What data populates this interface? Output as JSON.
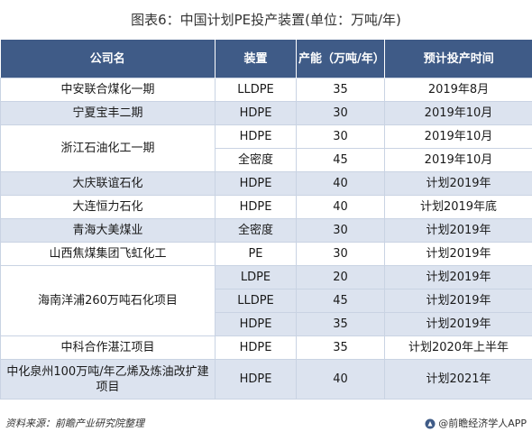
{
  "title": "图表6：中国计划PE投产装置(单位：万吨/年)",
  "table": {
    "headers": [
      "公司名",
      "装置",
      "产能（万吨/年）",
      "预计投产时间"
    ],
    "rows": [
      {
        "company": "中安联合煤化一期",
        "device": "LLDPE",
        "capacity": "35",
        "time": "2019年8月"
      },
      {
        "company": "宁夏宝丰二期",
        "device": "HDPE",
        "capacity": "30",
        "time": "2019年10月"
      },
      {
        "company": "浙江石油化工一期",
        "device": "HDPE",
        "capacity": "30",
        "time": "2019年10月"
      },
      {
        "company": "",
        "device": "全密度",
        "capacity": "45",
        "time": "2019年10月"
      },
      {
        "company": "大庆联谊石化",
        "device": "HDPE",
        "capacity": "40",
        "time": "计划2019年"
      },
      {
        "company": "大连恒力石化",
        "device": "HDPE",
        "capacity": "40",
        "time": "计划2019年底"
      },
      {
        "company": "青海大美煤业",
        "device": "全密度",
        "capacity": "30",
        "time": "计划2019年"
      },
      {
        "company": "山西焦煤集团飞虹化工",
        "device": "PE",
        "capacity": "30",
        "time": "计划2019年"
      },
      {
        "company": "海南洋浦260万吨石化项目",
        "device": "LDPE",
        "capacity": "20",
        "time": "计划2019年"
      },
      {
        "company": "",
        "device": "LLDPE",
        "capacity": "45",
        "time": "计划2019年"
      },
      {
        "company": "",
        "device": "HDPE",
        "capacity": "35",
        "time": "计划2019年"
      },
      {
        "company": "中科合作湛江项目",
        "device": "HDPE",
        "capacity": "35",
        "time": "计划2020年上半年"
      },
      {
        "company": "中化泉州100万吨/年乙烯及炼油改扩建项目",
        "device": "HDPE",
        "capacity": "40",
        "time": "计划2021年"
      }
    ]
  },
  "footer": {
    "source": "资料来源：前瞻产业研究院整理",
    "brand": "@前瞻经济学人APP"
  },
  "colors": {
    "header_bg": "#3f5b87",
    "row_alt_bg": "#dce3ef",
    "border": "#c9d3e3"
  },
  "icons": {
    "brand": "qianzhan-logo-icon"
  }
}
